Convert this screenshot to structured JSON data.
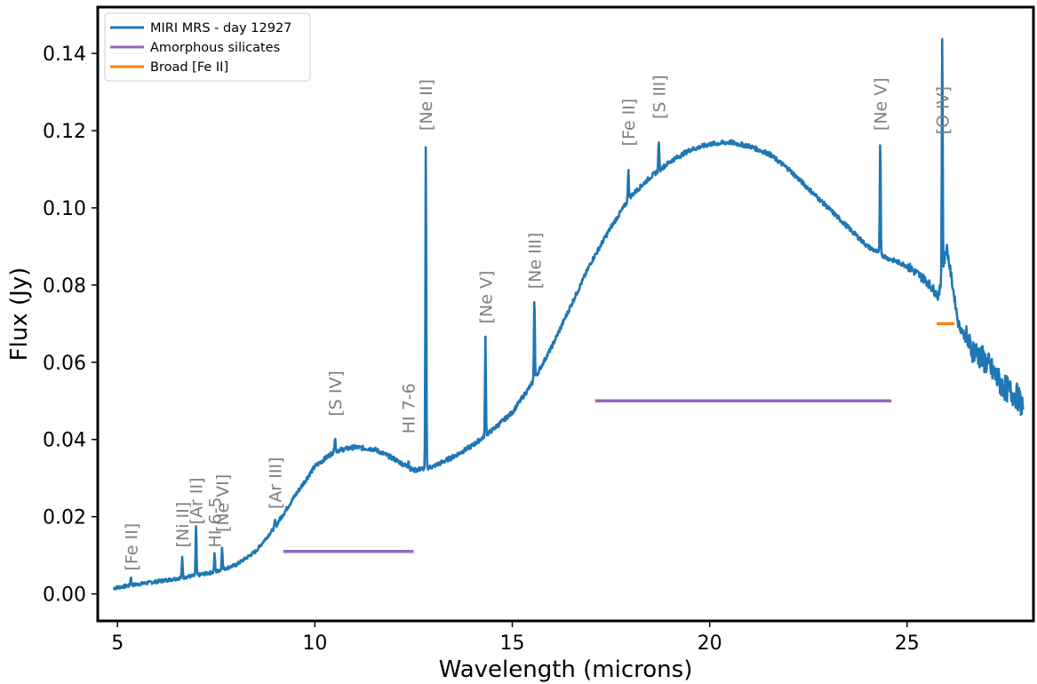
{
  "chart_data": {
    "type": "line",
    "xlabel": "Wavelength (microns)",
    "ylabel": "Flux (Jy)",
    "xlim": [
      4.5,
      28.2
    ],
    "ylim": [
      -0.007,
      0.152
    ],
    "xticks": [
      5,
      10,
      15,
      20,
      25
    ],
    "yticks": [
      0.0,
      0.02,
      0.04,
      0.06,
      0.08,
      0.1,
      0.12,
      0.14
    ],
    "ytick_labels": [
      "0.00",
      "0.02",
      "0.04",
      "0.06",
      "0.08",
      "0.10",
      "0.12",
      "0.14"
    ],
    "grid": false,
    "legend_position": "top-left",
    "colors": {
      "spectrum": "#1f77b4",
      "silicates": "#9467bd",
      "fe_ii": "#ff7f0e",
      "labels": "#808080"
    },
    "series": [
      {
        "name": "MIRI MRS - day 12927",
        "style": "line",
        "continuum": [
          [
            4.9,
            0.0015
          ],
          [
            5.5,
            0.0025
          ],
          [
            6.0,
            0.0032
          ],
          [
            6.5,
            0.004
          ],
          [
            7.0,
            0.0048
          ],
          [
            7.5,
            0.0058
          ],
          [
            8.0,
            0.0075
          ],
          [
            8.5,
            0.011
          ],
          [
            9.0,
            0.0175
          ],
          [
            9.5,
            0.0255
          ],
          [
            10.0,
            0.033
          ],
          [
            10.5,
            0.037
          ],
          [
            11.0,
            0.038
          ],
          [
            11.5,
            0.0375
          ],
          [
            12.0,
            0.035
          ],
          [
            12.5,
            0.032
          ],
          [
            13.0,
            0.033
          ],
          [
            13.5,
            0.0355
          ],
          [
            14.0,
            0.0385
          ],
          [
            14.5,
            0.0425
          ],
          [
            15.0,
            0.047
          ],
          [
            15.5,
            0.0545
          ],
          [
            16.0,
            0.064
          ],
          [
            16.5,
            0.075
          ],
          [
            17.0,
            0.086
          ],
          [
            17.5,
            0.095
          ],
          [
            18.0,
            0.103
          ],
          [
            18.5,
            0.108
          ],
          [
            19.0,
            0.112
          ],
          [
            19.5,
            0.115
          ],
          [
            20.0,
            0.1165
          ],
          [
            20.5,
            0.117
          ],
          [
            21.0,
            0.116
          ],
          [
            21.5,
            0.114
          ],
          [
            22.0,
            0.11
          ],
          [
            22.5,
            0.105
          ],
          [
            23.0,
            0.1
          ],
          [
            23.5,
            0.095
          ],
          [
            24.0,
            0.09
          ],
          [
            24.5,
            0.087
          ],
          [
            25.0,
            0.085
          ],
          [
            25.5,
            0.081
          ],
          [
            25.8,
            0.077
          ],
          [
            26.0,
            0.09
          ],
          [
            26.3,
            0.07
          ],
          [
            26.6,
            0.064
          ],
          [
            27.0,
            0.06
          ],
          [
            27.4,
            0.054
          ],
          [
            27.8,
            0.051
          ],
          [
            27.95,
            0.048
          ]
        ],
        "emission_lines": [
          {
            "x": 5.34,
            "peak": 0.0045
          },
          {
            "x": 6.64,
            "peak": 0.0095
          },
          {
            "x": 6.99,
            "peak": 0.0175
          },
          {
            "x": 7.46,
            "peak": 0.0105
          },
          {
            "x": 7.65,
            "peak": 0.0125
          },
          {
            "x": 8.99,
            "peak": 0.019
          },
          {
            "x": 10.51,
            "peak": 0.041
          },
          {
            "x": 12.37,
            "peak": 0.035
          },
          {
            "x": 12.81,
            "peak": 0.1165
          },
          {
            "x": 14.32,
            "peak": 0.0665
          },
          {
            "x": 15.56,
            "peak": 0.0775
          },
          {
            "x": 17.94,
            "peak": 0.1105
          },
          {
            "x": 18.71,
            "peak": 0.1175
          },
          {
            "x": 24.32,
            "peak": 0.1185
          },
          {
            "x": 25.89,
            "peak": 0.145
          }
        ]
      },
      {
        "name": "Amorphous silicates",
        "style": "segments",
        "segments": [
          {
            "x": [
              9.2,
              12.5
            ],
            "y": 0.011
          },
          {
            "x": [
              17.1,
              24.6
            ],
            "y": 0.05
          }
        ]
      },
      {
        "name": "Broad [Fe II]",
        "style": "segments",
        "segments": [
          {
            "x": [
              25.75,
              26.2
            ],
            "y": 0.07
          }
        ]
      }
    ],
    "annotations": [
      {
        "text": "[Fe II]",
        "x": 5.34,
        "y": 0.006
      },
      {
        "text": "[Ni II]",
        "x": 6.64,
        "y": 0.012
      },
      {
        "text": "[Ar II]",
        "x": 6.99,
        "y": 0.018
      },
      {
        "text": "HI 6-5",
        "x": 7.46,
        "y": 0.012
      },
      {
        "text": "[Ne VI]",
        "x": 7.65,
        "y": 0.016
      },
      {
        "text": "[Ar III]",
        "x": 8.99,
        "y": 0.022
      },
      {
        "text": "[S IV]",
        "x": 10.51,
        "y": 0.046
      },
      {
        "text": "HI 7-6",
        "x": 12.37,
        "y": 0.0415
      },
      {
        "text": "[Ne II]",
        "x": 12.81,
        "y": 0.12
      },
      {
        "text": "[Ne V]",
        "x": 14.32,
        "y": 0.07
      },
      {
        "text": "[Ne III]",
        "x": 15.56,
        "y": 0.079
      },
      {
        "text": "[Fe II]",
        "x": 17.94,
        "y": 0.116
      },
      {
        "text": "[S III]",
        "x": 18.71,
        "y": 0.123
      },
      {
        "text": "[Ne V]",
        "x": 24.32,
        "y": 0.12
      },
      {
        "text": "[O IV]",
        "x": 25.89,
        "y": 0.119
      }
    ]
  }
}
